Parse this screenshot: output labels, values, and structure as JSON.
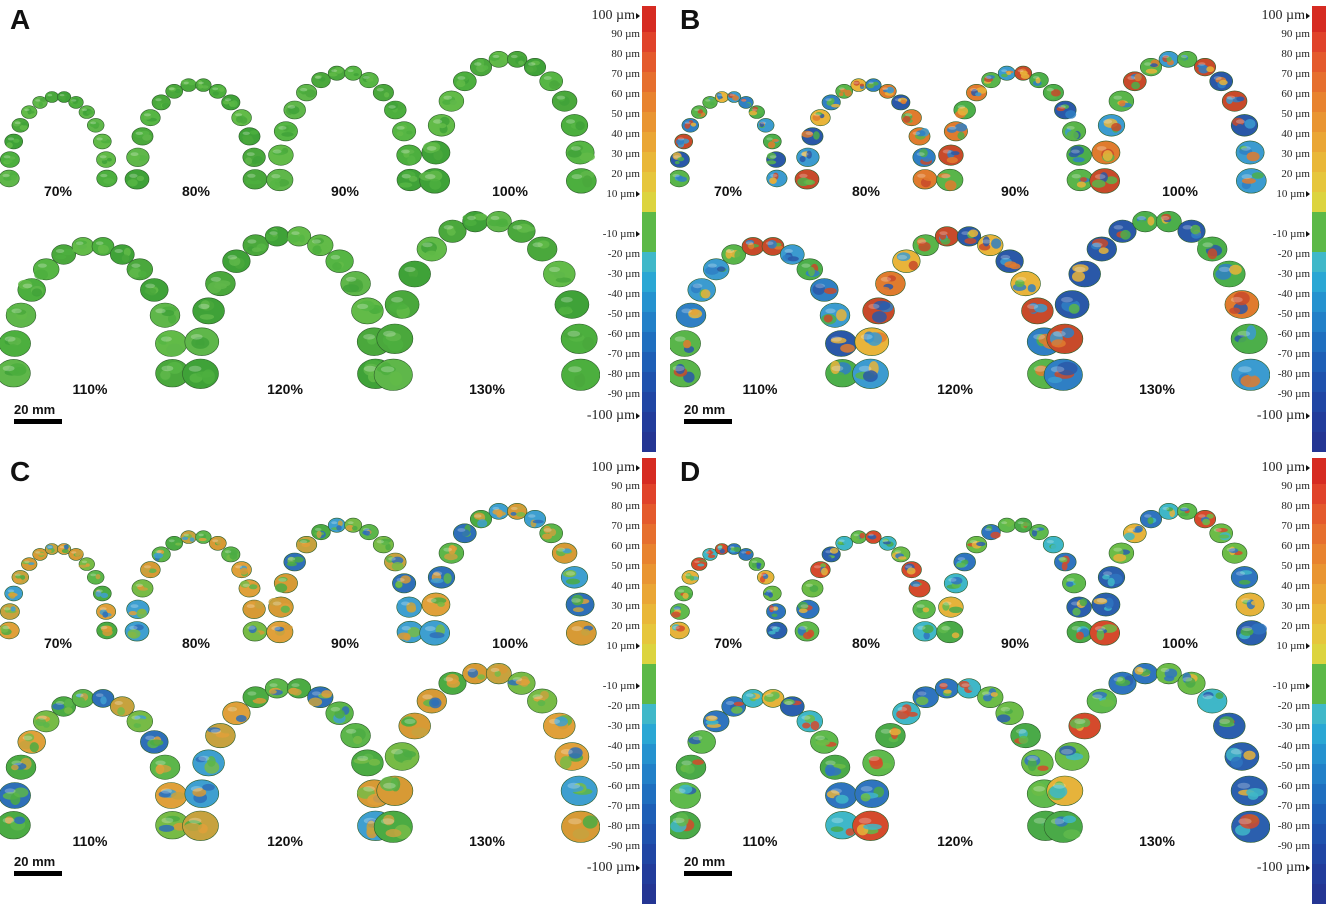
{
  "panels": [
    {
      "letter": "A",
      "style": "green"
    },
    {
      "letter": "B",
      "style": "mixed"
    },
    {
      "letter": "C",
      "style": "warm"
    },
    {
      "letter": "D",
      "style": "cool"
    }
  ],
  "percent_labels": [
    "70%",
    "80%",
    "90%",
    "100%",
    "110%",
    "120%",
    "130%"
  ],
  "scale_bar": "20 mm",
  "colorbar": {
    "labels": [
      "100 µm",
      "90 µm",
      "80 µm",
      "70 µm",
      "60 µm",
      "50 µm",
      "40 µm",
      "30 µm",
      "20 µm",
      "10 µm",
      "",
      "-10 µm",
      "-20 µm",
      "-30 µm",
      "-40 µm",
      "-50 µm",
      "-60 µm",
      "-70 µm",
      "-80 µm",
      "-90 µm",
      "-100 µm"
    ],
    "colors": [
      "#d62b22",
      "#e0432a",
      "#e45a2c",
      "#e66f2e",
      "#e8832f",
      "#e99532",
      "#eaa635",
      "#e9b738",
      "#e6c63c",
      "#dcd43f",
      "#5cb947",
      "#3fb8c9",
      "#2aa7d4",
      "#2592cf",
      "#2280c8",
      "#1f6fbf",
      "#1e5fb6",
      "#1f52ad",
      "#2046a4",
      "#223c9b",
      "#243593"
    ]
  }
}
